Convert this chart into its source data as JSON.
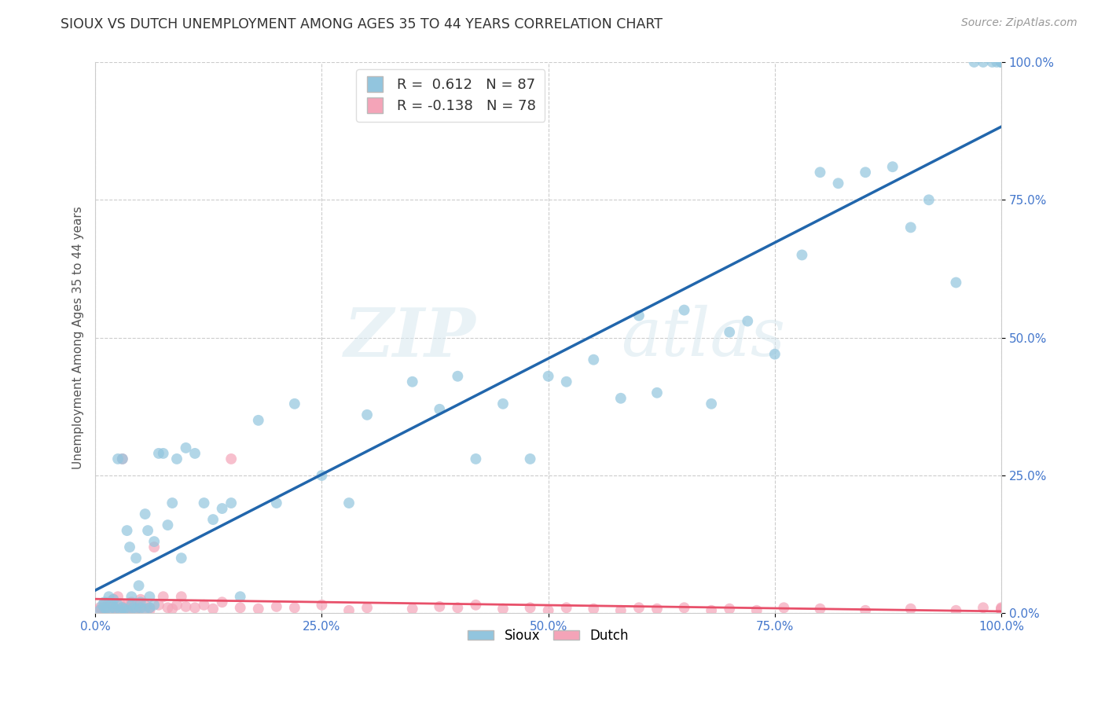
{
  "title": "SIOUX VS DUTCH UNEMPLOYMENT AMONG AGES 35 TO 44 YEARS CORRELATION CHART",
  "source": "Source: ZipAtlas.com",
  "ylabel": "Unemployment Among Ages 35 to 44 years",
  "xlim": [
    0,
    1
  ],
  "ylim": [
    0,
    1
  ],
  "xticks": [
    0.0,
    0.25,
    0.5,
    0.75,
    1.0
  ],
  "yticks": [
    0.0,
    0.25,
    0.5,
    0.75,
    1.0
  ],
  "xticklabels": [
    "0.0%",
    "25.0%",
    "50.0%",
    "75.0%",
    "100.0%"
  ],
  "yticklabels": [
    "0.0%",
    "25.0%",
    "50.0%",
    "75.0%",
    "100.0%"
  ],
  "sioux_color": "#92c5de",
  "dutch_color": "#f4a4b8",
  "sioux_line_color": "#2166ac",
  "dutch_line_color": "#e8506a",
  "sioux_R": 0.612,
  "sioux_N": 87,
  "dutch_R": -0.138,
  "dutch_N": 78,
  "watermark_zip": "ZIP",
  "watermark_atlas": "atlas",
  "background_color": "#ffffff",
  "grid_color": "#cccccc",
  "tick_color": "#4477cc",
  "title_color": "#333333",
  "ylabel_color": "#555555",
  "sioux_x": [
    0.005,
    0.008,
    0.01,
    0.01,
    0.012,
    0.015,
    0.015,
    0.018,
    0.02,
    0.02,
    0.022,
    0.025,
    0.025,
    0.028,
    0.03,
    0.03,
    0.032,
    0.035,
    0.035,
    0.038,
    0.04,
    0.04,
    0.042,
    0.045,
    0.045,
    0.048,
    0.05,
    0.05,
    0.055,
    0.055,
    0.058,
    0.06,
    0.06,
    0.065,
    0.065,
    0.07,
    0.075,
    0.08,
    0.085,
    0.09,
    0.095,
    0.1,
    0.11,
    0.12,
    0.13,
    0.14,
    0.15,
    0.16,
    0.18,
    0.2,
    0.22,
    0.25,
    0.28,
    0.3,
    0.35,
    0.38,
    0.4,
    0.42,
    0.45,
    0.48,
    0.5,
    0.52,
    0.55,
    0.58,
    0.6,
    0.62,
    0.65,
    0.68,
    0.7,
    0.72,
    0.75,
    0.78,
    0.8,
    0.82,
    0.85,
    0.88,
    0.9,
    0.92,
    0.95,
    0.97,
    0.98,
    0.99,
    0.995,
    1.0,
    1.0,
    1.0,
    1.0
  ],
  "sioux_y": [
    0.005,
    0.015,
    0.01,
    0.02,
    0.008,
    0.03,
    0.005,
    0.018,
    0.012,
    0.025,
    0.008,
    0.015,
    0.28,
    0.005,
    0.01,
    0.28,
    0.008,
    0.15,
    0.005,
    0.12,
    0.03,
    0.015,
    0.01,
    0.1,
    0.008,
    0.05,
    0.02,
    0.01,
    0.18,
    0.008,
    0.15,
    0.03,
    0.01,
    0.13,
    0.015,
    0.29,
    0.29,
    0.16,
    0.2,
    0.28,
    0.1,
    0.3,
    0.29,
    0.2,
    0.17,
    0.19,
    0.2,
    0.03,
    0.35,
    0.2,
    0.38,
    0.25,
    0.2,
    0.36,
    0.42,
    0.37,
    0.43,
    0.28,
    0.38,
    0.28,
    0.43,
    0.42,
    0.46,
    0.39,
    0.54,
    0.4,
    0.55,
    0.38,
    0.51,
    0.53,
    0.47,
    0.65,
    0.8,
    0.78,
    0.8,
    0.81,
    0.7,
    0.75,
    0.6,
    1.0,
    1.0,
    1.0,
    1.0,
    1.0,
    1.0,
    1.0,
    1.0
  ],
  "dutch_x": [
    0.003,
    0.005,
    0.008,
    0.01,
    0.01,
    0.012,
    0.015,
    0.015,
    0.018,
    0.02,
    0.02,
    0.022,
    0.025,
    0.025,
    0.028,
    0.03,
    0.03,
    0.032,
    0.035,
    0.035,
    0.038,
    0.04,
    0.04,
    0.045,
    0.045,
    0.048,
    0.05,
    0.05,
    0.055,
    0.06,
    0.06,
    0.065,
    0.07,
    0.075,
    0.08,
    0.085,
    0.09,
    0.095,
    0.1,
    0.11,
    0.12,
    0.13,
    0.14,
    0.15,
    0.16,
    0.18,
    0.2,
    0.22,
    0.25,
    0.28,
    0.3,
    0.35,
    0.38,
    0.4,
    0.42,
    0.45,
    0.48,
    0.5,
    0.52,
    0.55,
    0.58,
    0.6,
    0.62,
    0.65,
    0.68,
    0.7,
    0.73,
    0.76,
    0.8,
    0.85,
    0.9,
    0.95,
    0.98,
    1.0,
    1.0,
    1.0,
    1.0,
    1.0
  ],
  "dutch_y": [
    0.005,
    0.01,
    0.008,
    0.015,
    0.005,
    0.012,
    0.02,
    0.008,
    0.018,
    0.01,
    0.025,
    0.008,
    0.03,
    0.005,
    0.015,
    0.01,
    0.28,
    0.008,
    0.015,
    0.005,
    0.01,
    0.02,
    0.008,
    0.015,
    0.005,
    0.01,
    0.025,
    0.008,
    0.015,
    0.01,
    0.005,
    0.12,
    0.015,
    0.03,
    0.01,
    0.008,
    0.015,
    0.03,
    0.012,
    0.01,
    0.015,
    0.008,
    0.02,
    0.28,
    0.01,
    0.008,
    0.012,
    0.01,
    0.015,
    0.005,
    0.01,
    0.008,
    0.012,
    0.01,
    0.015,
    0.008,
    0.01,
    0.005,
    0.01,
    0.008,
    0.005,
    0.01,
    0.008,
    0.01,
    0.005,
    0.008,
    0.005,
    0.01,
    0.008,
    0.005,
    0.008,
    0.005,
    0.01,
    0.008,
    0.005,
    0.01,
    0.005,
    0.008
  ]
}
